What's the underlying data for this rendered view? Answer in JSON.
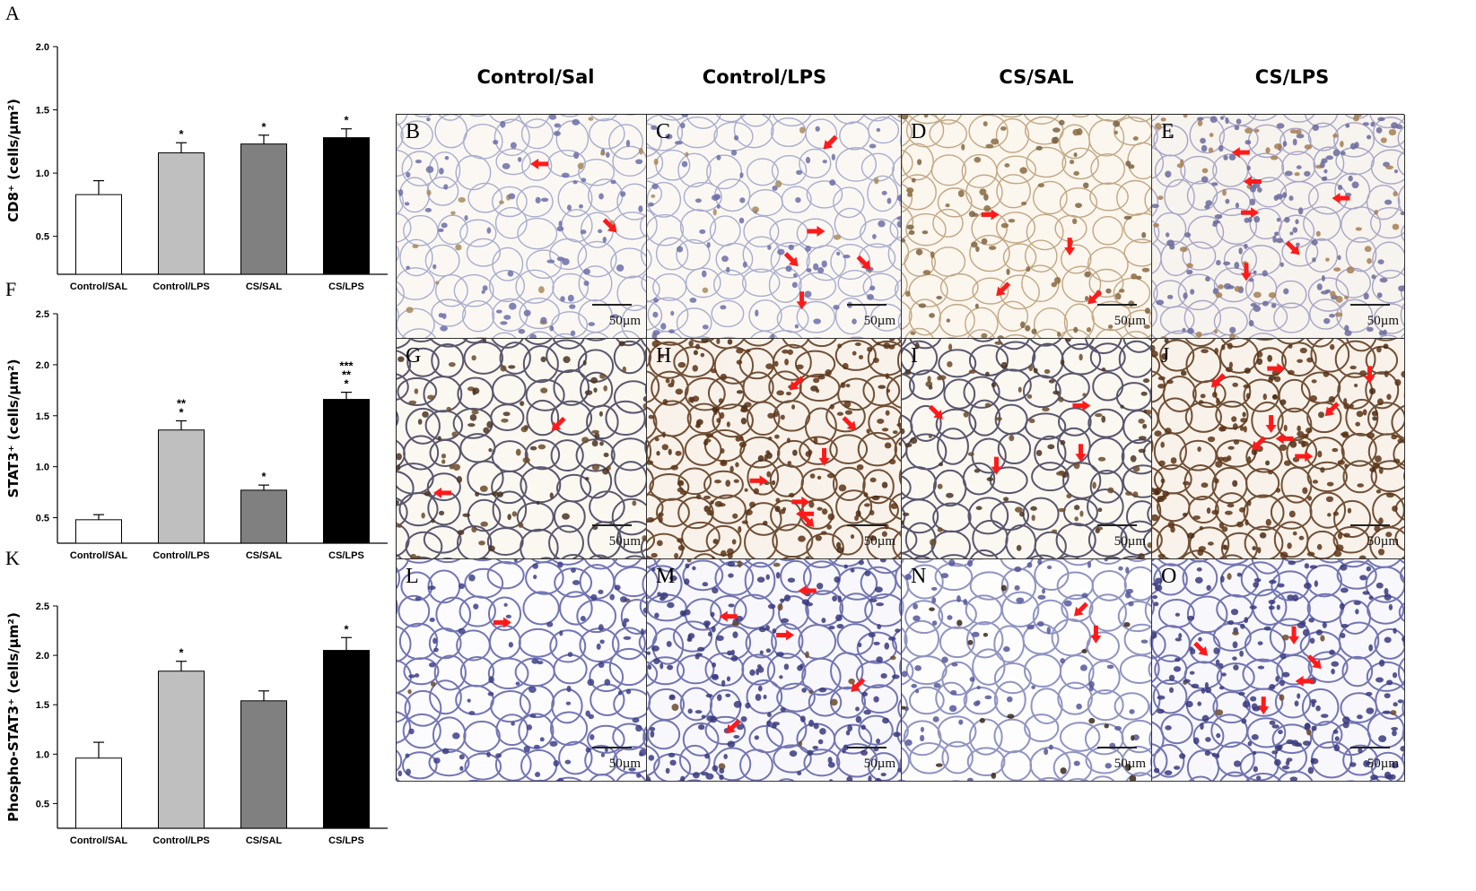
{
  "panel_letters": {
    "a": "A",
    "f": "F",
    "k": "K"
  },
  "column_headers": [
    "Control/Sal",
    "Control/LPS",
    "CS/SAL",
    "CS/LPS"
  ],
  "chart_data": [
    {
      "type": "bar",
      "panel": "A",
      "categories": [
        "Control/SAL",
        "Control/LPS",
        "CS/SAL",
        "CS/LPS"
      ],
      "values": [
        0.83,
        1.16,
        1.23,
        1.28
      ],
      "errors": [
        0.11,
        0.08,
        0.07,
        0.07
      ],
      "significance": [
        "",
        "*",
        "*",
        "*"
      ],
      "bar_colors": [
        "#ffffff",
        "#bfbfbf",
        "#808080",
        "#000000"
      ],
      "ylabel": "CD8⁺ (cells/µm²)",
      "ylim": [
        0.2,
        2.0
      ],
      "yticks": [
        "0.5",
        "1.0",
        "1.5",
        "2.0"
      ],
      "ytick_values": [
        0.5,
        1.0,
        1.5,
        2.0
      ],
      "grid": false
    },
    {
      "type": "bar",
      "panel": "F",
      "categories": [
        "Control/SAL",
        "Control/LPS",
        "CS/SAL",
        "CS/LPS"
      ],
      "values": [
        0.48,
        1.36,
        0.77,
        1.66
      ],
      "errors": [
        0.05,
        0.09,
        0.05,
        0.07
      ],
      "significance": [
        "",
        "**\n*",
        "*",
        "***\n**\n*"
      ],
      "bar_colors": [
        "#ffffff",
        "#bfbfbf",
        "#808080",
        "#000000"
      ],
      "ylabel": "STAT3⁺ (cells/µm²)",
      "ylim": [
        0.25,
        2.5
      ],
      "yticks": [
        "0.5",
        "1.0",
        "1.5",
        "2.0",
        "2.5"
      ],
      "ytick_values": [
        0.5,
        1.0,
        1.5,
        2.0,
        2.5
      ],
      "grid": false
    },
    {
      "type": "bar",
      "panel": "K",
      "categories": [
        "Control/SAL",
        "Control/LPS",
        "CS/SAL",
        "CS/LPS"
      ],
      "values": [
        0.96,
        1.84,
        1.54,
        2.05
      ],
      "errors": [
        0.16,
        0.1,
        0.1,
        0.13
      ],
      "significance": [
        "",
        "*",
        "",
        "*"
      ],
      "bar_colors": [
        "#ffffff",
        "#bfbfbf",
        "#808080",
        "#000000"
      ],
      "ylabel": "Phospho-STAT3⁺ (cells/µm²)",
      "ylim": [
        0.25,
        2.5
      ],
      "yticks": [
        "0.5",
        "1.0",
        "1.5",
        "2.0",
        "2.5"
      ],
      "ytick_values": [
        0.5,
        1.0,
        1.5,
        2.0,
        2.5
      ],
      "grid": false
    }
  ],
  "micrographs": [
    {
      "letter": "B",
      "scale": "50µm",
      "stain": "light",
      "arrows": 2
    },
    {
      "letter": "C",
      "scale": "50µm",
      "stain": "light",
      "arrows": 5
    },
    {
      "letter": "D",
      "scale": "50µm",
      "stain": "tan",
      "arrows": 4
    },
    {
      "letter": "E",
      "scale": "50µm",
      "stain": "dense",
      "arrows": 6
    },
    {
      "letter": "G",
      "scale": "50µm",
      "stain": "brown",
      "arrows": 2
    },
    {
      "letter": "H",
      "scale": "50µm",
      "stain": "darkbrown",
      "arrows": 7
    },
    {
      "letter": "I",
      "scale": "50µm",
      "stain": "brown",
      "arrows": 4
    },
    {
      "letter": "J",
      "scale": "50µm",
      "stain": "darkbrown",
      "arrows": 8
    },
    {
      "letter": "L",
      "scale": "50µm",
      "stain": "blue",
      "arrows": 1
    },
    {
      "letter": "M",
      "scale": "50µm",
      "stain": "bluedense",
      "arrows": 5
    },
    {
      "letter": "N",
      "scale": "50µm",
      "stain": "bluelight",
      "arrows": 2
    },
    {
      "letter": "O",
      "scale": "50µm",
      "stain": "bluedense",
      "arrows": 5
    }
  ],
  "colors": {
    "arrow": "#ff1a1a",
    "hematoxylin": "#5a5fa8",
    "dab": "#6b3f1c"
  }
}
